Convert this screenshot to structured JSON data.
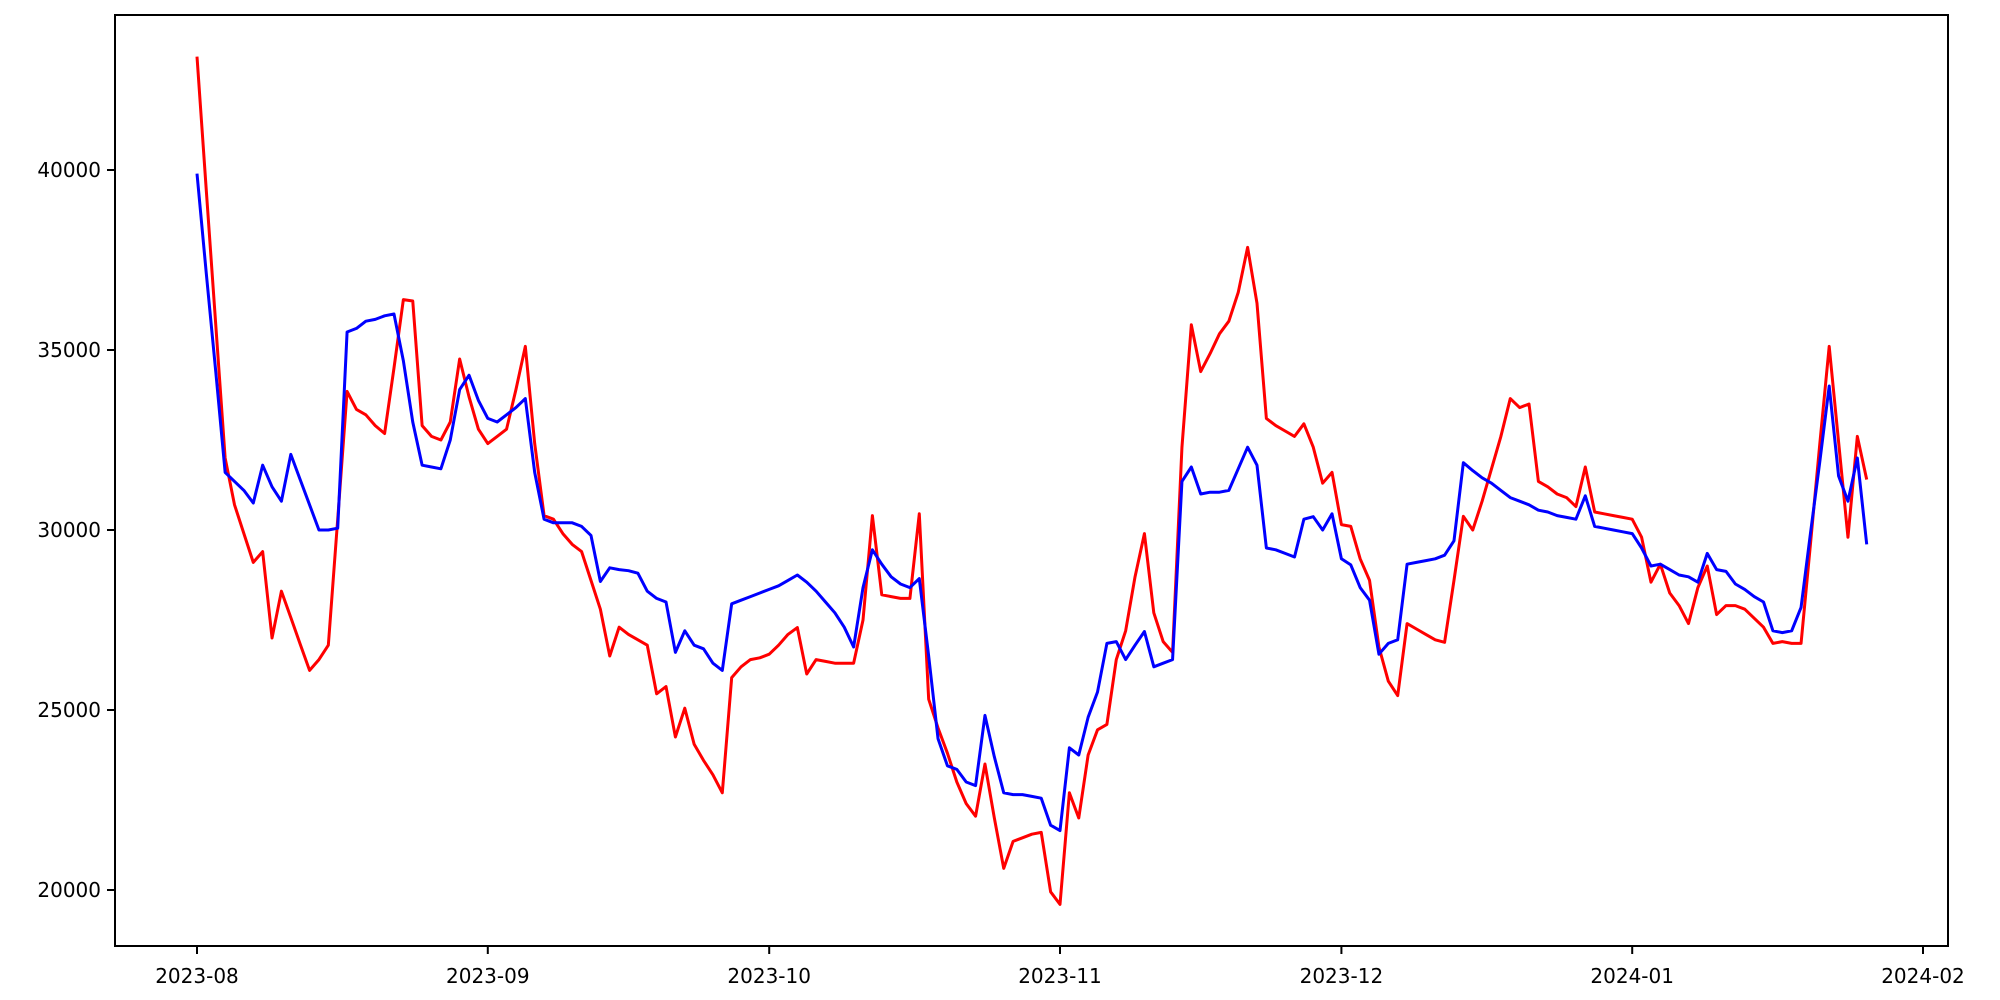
{
  "chart_data": {
    "type": "line",
    "title": "",
    "xlabel": "",
    "ylabel": "",
    "grid": false,
    "legend": null,
    "background_color": "#ffffff",
    "frame_color": "#000000",
    "x_start_date": "2023-08-01",
    "frequency": "daily",
    "n_points": 179,
    "x_tick_labels": [
      "2023-08",
      "2023-09",
      "2023-10",
      "2023-11",
      "2023-12",
      "2024-01",
      "2024-02"
    ],
    "x_tick_day_offsets": [
      0,
      31,
      61,
      92,
      122,
      153,
      184
    ],
    "y_tick_labels": [
      "20000",
      "25000",
      "30000",
      "35000",
      "40000"
    ],
    "y_tick_values": [
      20000,
      25000,
      30000,
      35000,
      40000
    ],
    "ylim_ticks": [
      20000,
      40000
    ],
    "series": [
      {
        "name": "red-series",
        "color": "#ff0000",
        "values": [
          43150,
          39400,
          35700,
          32000,
          30700,
          29900,
          29100,
          29400,
          27000,
          28300,
          27570,
          26830,
          26100,
          26400,
          26800,
          30300,
          33850,
          33350,
          33200,
          32900,
          32680,
          34500,
          36400,
          36360,
          32900,
          32600,
          32500,
          33000,
          34750,
          33700,
          32800,
          32400,
          32600,
          32800,
          33900,
          35100,
          32400,
          30400,
          30300,
          29900,
          29600,
          29400,
          28600,
          27800,
          26500,
          27300,
          27100,
          26950,
          26800,
          25450,
          25650,
          24250,
          25050,
          24050,
          23600,
          23200,
          22700,
          25900,
          26200,
          26400,
          26450,
          26550,
          26800,
          27100,
          27290,
          26000,
          26400,
          26350,
          26300,
          26300,
          26300,
          27500,
          30400,
          28200,
          28150,
          28100,
          28100,
          30450,
          25300,
          24500,
          23800,
          23000,
          22400,
          22050,
          23500,
          22000,
          20600,
          21350,
          21450,
          21550,
          21600,
          19950,
          19600,
          22700,
          22000,
          23750,
          24450,
          24600,
          26400,
          27200,
          28700,
          29900,
          27700,
          26900,
          26600,
          32300,
          35700,
          34400,
          34900,
          35450,
          35800,
          36600,
          37850,
          36300,
          33100,
          32900,
          32750,
          32600,
          32950,
          32300,
          31300,
          31600,
          30150,
          30100,
          29200,
          28600,
          26750,
          25800,
          25400,
          27400,
          27250,
          27100,
          26950,
          26880,
          28600,
          30380,
          30000,
          30800,
          31700,
          32600,
          33650,
          33400,
          33500,
          31350,
          31200,
          31000,
          30900,
          30650,
          31750,
          30500,
          30450,
          30400,
          30350,
          30300,
          29800,
          28550,
          29050,
          28250,
          27900,
          27400,
          28400,
          29000,
          27650,
          27900,
          27900,
          27800,
          27550,
          27300,
          26850,
          26900,
          26850,
          26850,
          29600,
          32400,
          35100,
          32450,
          29800,
          32600,
          31400
        ]
      },
      {
        "name": "blue-series",
        "color": "#0000ff",
        "values": [
          39900,
          37100,
          34400,
          31600,
          31350,
          31100,
          30750,
          31800,
          31200,
          30800,
          32100,
          31400,
          30700,
          30000,
          30000,
          30050,
          35500,
          35600,
          35800,
          35850,
          35950,
          36000,
          34700,
          33000,
          31800,
          31750,
          31700,
          32500,
          33900,
          34300,
          33600,
          33100,
          33000,
          33200,
          33400,
          33650,
          31600,
          30300,
          30200,
          30200,
          30200,
          30100,
          29850,
          28570,
          28950,
          28900,
          28870,
          28800,
          28300,
          28100,
          28000,
          26600,
          27200,
          26800,
          26700,
          26300,
          26100,
          27950,
          28050,
          28150,
          28250,
          28350,
          28450,
          28600,
          28750,
          28550,
          28300,
          28000,
          27700,
          27300,
          26750,
          28400,
          29450,
          29050,
          28700,
          28500,
          28400,
          28650,
          26500,
          24200,
          23450,
          23350,
          23000,
          22900,
          24850,
          23700,
          22700,
          22650,
          22650,
          22600,
          22550,
          21800,
          21650,
          23950,
          23750,
          24800,
          25500,
          26850,
          26900,
          26400,
          26800,
          27180,
          26200,
          26300,
          26400,
          31350,
          31750,
          31000,
          31050,
          31050,
          31100,
          31700,
          32300,
          31800,
          29500,
          29450,
          29350,
          29250,
          30300,
          30370,
          30000,
          30450,
          29200,
          29030,
          28400,
          28050,
          26550,
          26850,
          26950,
          29050,
          29100,
          29150,
          29200,
          29300,
          29700,
          31870,
          31650,
          31450,
          31300,
          31100,
          30900,
          30800,
          30700,
          30550,
          30500,
          30400,
          30350,
          30300,
          30950,
          30100,
          30050,
          30000,
          29950,
          29900,
          29500,
          29000,
          29050,
          28900,
          28750,
          28700,
          28550,
          29350,
          28900,
          28850,
          28500,
          28350,
          28150,
          28000,
          27200,
          27150,
          27200,
          27850,
          29900,
          31900,
          34000,
          31500,
          30800,
          32000,
          29600
        ]
      }
    ]
  }
}
